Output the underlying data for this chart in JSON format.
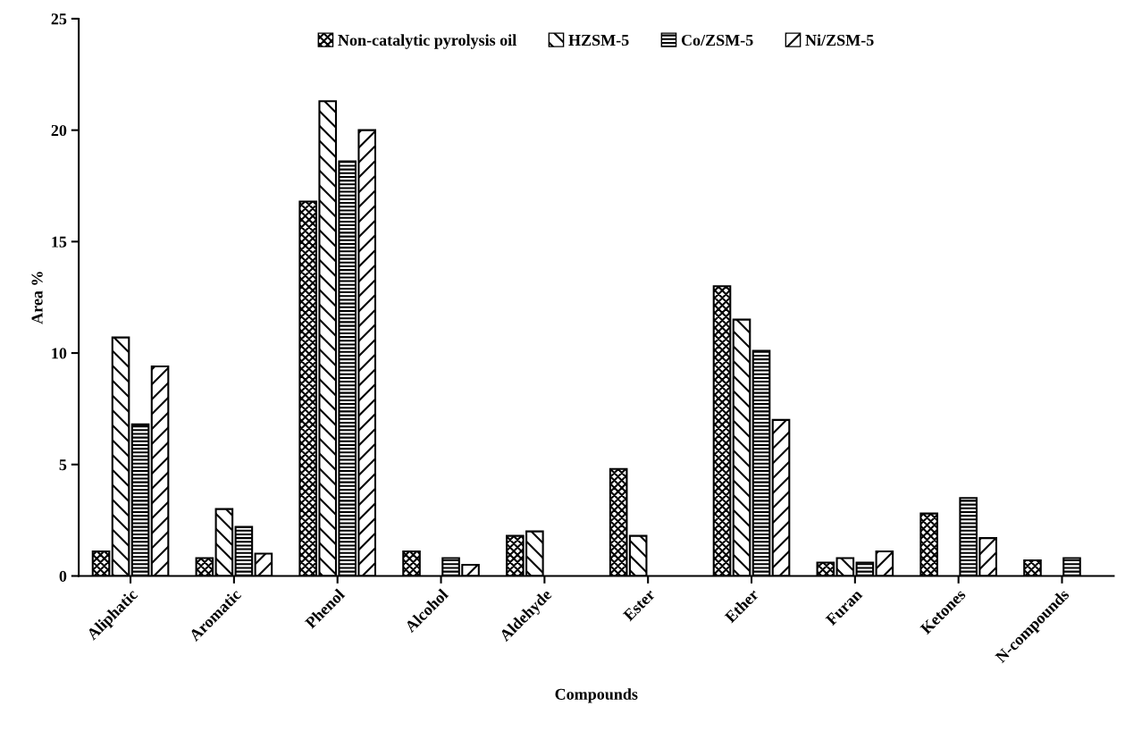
{
  "chart_data": {
    "type": "bar",
    "xlabel": "Compounds",
    "ylabel": "Area %",
    "categories": [
      "Aliphatic",
      "Aromatic",
      "Phenol",
      "Alcohol",
      "Aldehyde",
      "Ester",
      "Ether",
      "Furan",
      "Ketones",
      "N-compounds"
    ],
    "series": [
      {
        "name": "Non-catalytic pyrolysis oil",
        "color": "#000000",
        "values": [
          1.1,
          0.8,
          16.8,
          1.1,
          1.8,
          4.8,
          13.0,
          0.6,
          2.8,
          0.7
        ]
      },
      {
        "name": "HZSM-5",
        "color": "#000000",
        "values": [
          10.7,
          3.0,
          21.3,
          null,
          2.0,
          1.8,
          11.5,
          0.8,
          null,
          null
        ]
      },
      {
        "name": "Co/ZSM-5",
        "color": "#000000",
        "values": [
          6.8,
          2.2,
          18.6,
          0.8,
          null,
          null,
          10.1,
          0.6,
          3.5,
          0.8
        ]
      },
      {
        "name": "Ni/ZSM-5",
        "color": "#000000",
        "values": [
          9.4,
          1.0,
          20.0,
          0.5,
          null,
          null,
          7.0,
          1.1,
          1.7,
          null
        ]
      }
    ],
    "ylim": [
      0,
      25
    ],
    "yticks": [
      0,
      5,
      10,
      15,
      20,
      25
    ],
    "grid": false,
    "legend": "top"
  }
}
